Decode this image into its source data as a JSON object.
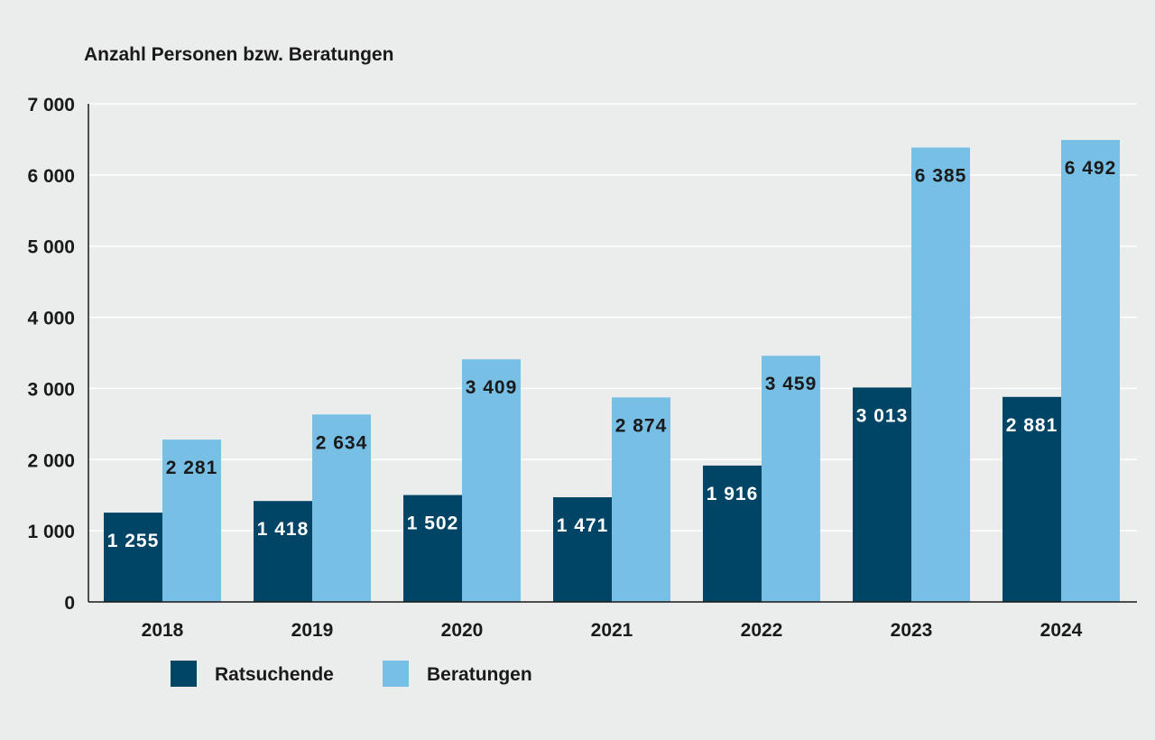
{
  "chart_data": {
    "type": "bar",
    "ylabel": "Anzahl Personen bzw. Beratungen",
    "xlabel": "",
    "categories": [
      "2018",
      "2019",
      "2020",
      "2021",
      "2022",
      "2023",
      "2024"
    ],
    "ylim": [
      0,
      7000
    ],
    "yticks": [
      0,
      1000,
      2000,
      3000,
      4000,
      5000,
      6000,
      7000
    ],
    "ytick_labels": [
      "0",
      "1 000",
      "2 000",
      "3 000",
      "4 000",
      "5 000",
      "6 000",
      "7 000"
    ],
    "grid": true,
    "legend_position": "bottom-left",
    "series": [
      {
        "name": "Ratsuchende",
        "color": "#004466",
        "label_color": "#ffffff",
        "values": [
          1255,
          1418,
          1502,
          1471,
          1916,
          3013,
          2881
        ],
        "value_labels": [
          "1 255",
          "1 418",
          "1 502",
          "1 471",
          "1 916",
          "3 013",
          "2 881"
        ]
      },
      {
        "name": "Beratungen",
        "color": "#78bfe6",
        "label_color": "#1a1a1a",
        "values": [
          2281,
          2634,
          3409,
          2874,
          3459,
          6385,
          6492
        ],
        "value_labels": [
          "2 281",
          "2 634",
          "3 409",
          "2 874",
          "3 459",
          "6 385",
          "6 492"
        ]
      }
    ]
  }
}
